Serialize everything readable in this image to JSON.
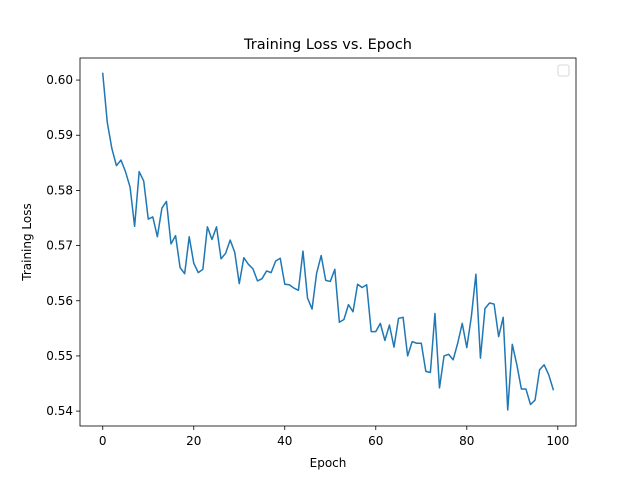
{
  "chart_data": {
    "type": "line",
    "title": "Training Loss vs. Epoch",
    "xlabel": "Epoch",
    "ylabel": "Training Loss",
    "xlim": [
      -5,
      104
    ],
    "ylim": [
      0.5373,
      0.604
    ],
    "xticks": [
      0,
      20,
      40,
      60,
      80,
      100
    ],
    "yticks": [
      0.54,
      0.55,
      0.56,
      0.57,
      0.58,
      0.59,
      0.6
    ],
    "ytick_labels": [
      "0.54",
      "0.55",
      "0.56",
      "0.57",
      "0.58",
      "0.59",
      "0.60"
    ],
    "grid": false,
    "legend": {
      "placement": "top-right",
      "entries": []
    },
    "series": [
      {
        "color": "#1f77b4",
        "x": [
          0,
          1,
          2,
          3,
          4,
          5,
          6,
          7,
          8,
          9,
          10,
          11,
          12,
          13,
          14,
          15,
          16,
          17,
          18,
          19,
          20,
          21,
          22,
          23,
          24,
          25,
          26,
          27,
          28,
          29,
          30,
          31,
          32,
          33,
          34,
          35,
          36,
          37,
          38,
          39,
          40,
          41,
          42,
          43,
          44,
          45,
          46,
          47,
          48,
          49,
          50,
          51,
          52,
          53,
          54,
          55,
          56,
          57,
          58,
          59,
          60,
          61,
          62,
          63,
          64,
          65,
          66,
          67,
          68,
          69,
          70,
          71,
          72,
          73,
          74,
          75,
          76,
          77,
          78,
          79,
          80,
          81,
          82,
          83,
          84,
          85,
          86,
          87,
          88,
          89,
          90,
          91,
          92,
          93,
          94,
          95,
          96,
          97,
          98,
          99
        ],
        "y": [
          0.6012,
          0.5923,
          0.5876,
          0.5845,
          0.5855,
          0.5834,
          0.5806,
          0.5735,
          0.5834,
          0.5817,
          0.5748,
          0.5752,
          0.5716,
          0.5768,
          0.578,
          0.5703,
          0.5718,
          0.566,
          0.5649,
          0.5716,
          0.5668,
          0.5651,
          0.5657,
          0.5734,
          0.5711,
          0.5734,
          0.5676,
          0.5686,
          0.571,
          0.5688,
          0.5631,
          0.5678,
          0.5666,
          0.5658,
          0.5636,
          0.564,
          0.5654,
          0.5651,
          0.5672,
          0.5677,
          0.563,
          0.5629,
          0.5623,
          0.5619,
          0.569,
          0.5605,
          0.5585,
          0.565,
          0.5682,
          0.5637,
          0.5635,
          0.5657,
          0.5561,
          0.5566,
          0.5593,
          0.558,
          0.563,
          0.5624,
          0.5629,
          0.5544,
          0.5544,
          0.5559,
          0.5528,
          0.5556,
          0.5516,
          0.5568,
          0.557,
          0.55,
          0.5526,
          0.5523,
          0.5523,
          0.5472,
          0.547,
          0.5577,
          0.5442,
          0.55,
          0.5503,
          0.5493,
          0.5523,
          0.5559,
          0.5515,
          0.5571,
          0.5648,
          0.5496,
          0.5586,
          0.5596,
          0.5594,
          0.5535,
          0.557,
          0.5402,
          0.5521,
          0.5484,
          0.544,
          0.544,
          0.5412,
          0.542,
          0.5475,
          0.5484,
          0.5466,
          0.5439
        ]
      }
    ]
  }
}
